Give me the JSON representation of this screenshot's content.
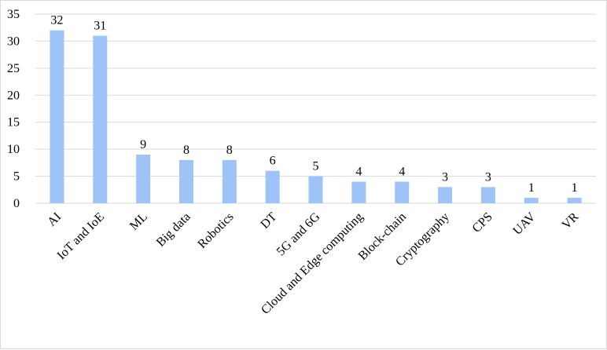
{
  "chart_data": {
    "type": "bar",
    "title": "",
    "xlabel": "",
    "ylabel": "",
    "categories": [
      "AI",
      "IoT and IoE",
      "ML",
      "Big data",
      "Robotics",
      "DT",
      "5G and 6G",
      "Cloud and Edge computing",
      "Block-chain",
      "Cryptography",
      "CPS",
      "UAV",
      "VR"
    ],
    "values": [
      32,
      31,
      9,
      8,
      8,
      6,
      5,
      4,
      4,
      3,
      3,
      1,
      1
    ],
    "ylim": [
      0,
      35
    ],
    "yticks": [
      0,
      5,
      10,
      15,
      20,
      25,
      30,
      35
    ],
    "grid": true,
    "legend": "none",
    "bar_color": "#9DC3F7",
    "grid_color": "#d9d9d9"
  }
}
